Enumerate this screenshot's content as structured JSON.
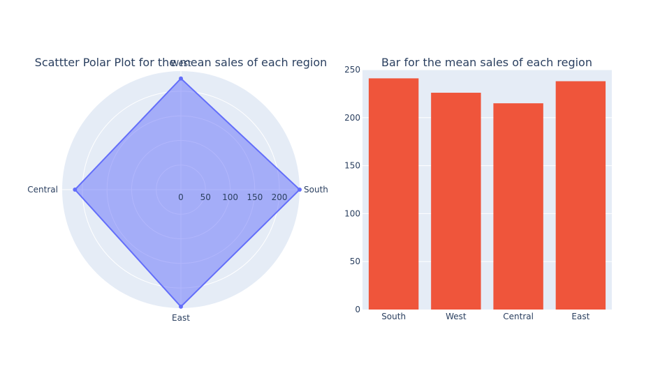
{
  "chart_data": [
    {
      "type": "scatterpolar",
      "title": "Scattter Polar Plot for the mean sales of each region",
      "categories": [
        "South",
        "West",
        "Central",
        "East"
      ],
      "values": [
        241,
        226,
        215,
        238
      ],
      "radial_tick_labels": [
        "0",
        "50",
        "100",
        "150",
        "200"
      ],
      "radial_range": [
        0,
        241
      ],
      "fill": "toself",
      "line_color": "#636efa",
      "fill_color": "rgba(99,110,250,0.5)",
      "grid": true
    },
    {
      "type": "bar",
      "title": "Bar for the mean sales of each region",
      "categories": [
        "South",
        "West",
        "Central",
        "East"
      ],
      "values": [
        241,
        226,
        215,
        238
      ],
      "ylim": [
        0,
        250
      ],
      "y_tick_labels": [
        "0",
        "50",
        "100",
        "150",
        "200",
        "250"
      ],
      "bar_color": "#ef553b",
      "grid": true
    }
  ]
}
